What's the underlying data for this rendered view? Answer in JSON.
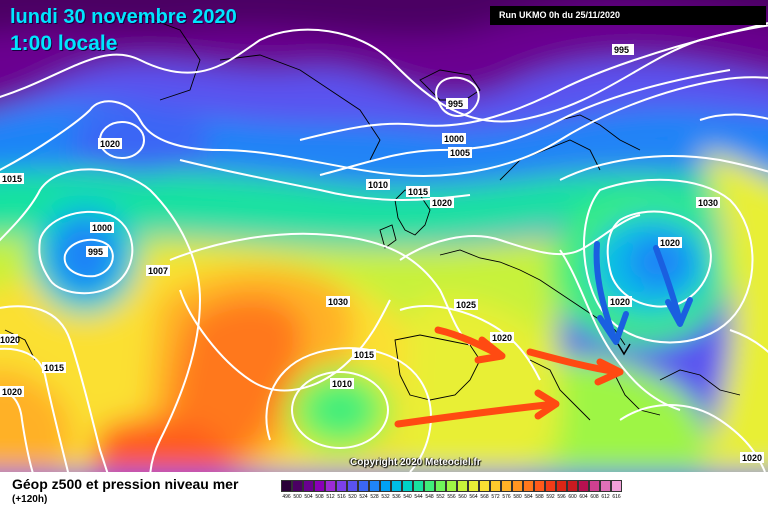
{
  "header": {
    "date": "lundi 30 novembre 2020",
    "local_time": "1:00 locale",
    "run": "Run UKMO 0h du 25/11/2020"
  },
  "footer": {
    "title": "Géop z500 et pression niveau mer",
    "subtitle": "(+120h)",
    "copyright": "Copyright 2020 Meteociel.fr"
  },
  "legend": {
    "labels": [
      "496",
      "500",
      "504",
      "508",
      "512",
      "516",
      "520",
      "524",
      "528",
      "532",
      "536",
      "540",
      "544",
      "548",
      "552",
      "556",
      "560",
      "564",
      "568",
      "572",
      "576",
      "580",
      "584",
      "588",
      "592",
      "596",
      "600",
      "604",
      "608",
      "612",
      "616"
    ],
    "colors": [
      "#2a0038",
      "#4b0063",
      "#6a0090",
      "#8a00b8",
      "#9d2bd6",
      "#7c40e8",
      "#5a52f0",
      "#3b66f5",
      "#1f84f7",
      "#00a2f5",
      "#00bde6",
      "#00d2c8",
      "#18e2a0",
      "#3fee7a",
      "#6ff45a",
      "#9ef545",
      "#c7f23a",
      "#e8ef36",
      "#fbe032",
      "#ffc92c",
      "#ffb126",
      "#ff9520",
      "#ff781c",
      "#ff5a1a",
      "#f23c18",
      "#dc2616",
      "#c81a20",
      "#b81050",
      "#d04090",
      "#e070b8",
      "#f0a0d8"
    ]
  },
  "map": {
    "isobar_labels": [
      "995",
      "1020",
      "1015",
      "1000",
      "995",
      "1007",
      "1030",
      "1015",
      "1010",
      "1020",
      "1015",
      "1020",
      "995",
      "1000",
      "1005",
      "1010",
      "1015",
      "1020",
      "1025",
      "1020",
      "1030",
      "1020",
      "1020",
      "1020"
    ],
    "annotations": {
      "red_arrows": 3,
      "blue_arrows": 2
    }
  }
}
